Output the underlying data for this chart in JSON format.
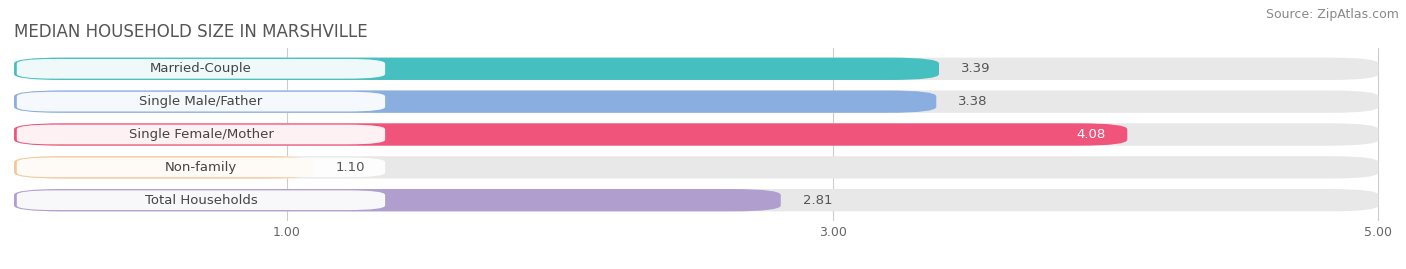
{
  "title": "MEDIAN HOUSEHOLD SIZE IN MARSHVILLE",
  "source": "Source: ZipAtlas.com",
  "categories": [
    "Married-Couple",
    "Single Male/Father",
    "Single Female/Mother",
    "Non-family",
    "Total Households"
  ],
  "values": [
    3.39,
    3.38,
    4.08,
    1.1,
    2.81
  ],
  "bar_colors": [
    "#45bfbf",
    "#8aaee0",
    "#f0547a",
    "#f5c89a",
    "#b09ece"
  ],
  "value_colors": [
    "#555555",
    "#555555",
    "#ffffff",
    "#555555",
    "#555555"
  ],
  "xlim_max": 5.0,
  "xticks": [
    1.0,
    3.0,
    5.0
  ],
  "title_fontsize": 12,
  "source_fontsize": 9,
  "category_fontsize": 9.5,
  "value_fontsize": 9.5,
  "fig_bg": "#ffffff",
  "plot_bg": "#ffffff",
  "fig_width": 14.06,
  "fig_height": 2.69,
  "dpi": 100
}
